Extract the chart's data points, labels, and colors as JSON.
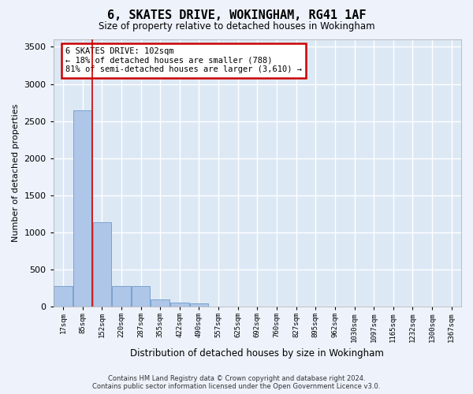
{
  "title": "6, SKATES DRIVE, WOKINGHAM, RG41 1AF",
  "subtitle": "Size of property relative to detached houses in Wokingham",
  "xlabel": "Distribution of detached houses by size in Wokingham",
  "ylabel": "Number of detached properties",
  "bar_color": "#aec6e8",
  "bar_edge_color": "#5a8fc2",
  "background_color": "#dde8f5",
  "grid_color": "#ffffff",
  "vline_color": "#cc0000",
  "vline_x": 1.5,
  "annotation_text": "6 SKATES DRIVE: 102sqm\n← 18% of detached houses are smaller (788)\n81% of semi-detached houses are larger (3,610) →",
  "annotation_box_color": "#ffffff",
  "annotation_box_edge": "#cc0000",
  "bin_labels": [
    "17sqm",
    "85sqm",
    "152sqm",
    "220sqm",
    "287sqm",
    "355sqm",
    "422sqm",
    "490sqm",
    "557sqm",
    "625sqm",
    "692sqm",
    "760sqm",
    "827sqm",
    "895sqm",
    "962sqm",
    "1030sqm",
    "1097sqm",
    "1165sqm",
    "1232sqm",
    "1300sqm",
    "1367sqm"
  ],
  "bar_heights": [
    275,
    2640,
    1140,
    280,
    280,
    95,
    55,
    40,
    0,
    0,
    0,
    0,
    0,
    0,
    0,
    0,
    0,
    0,
    0,
    0,
    0
  ],
  "ylim": [
    0,
    3600
  ],
  "yticks": [
    0,
    500,
    1000,
    1500,
    2000,
    2500,
    3000,
    3500
  ],
  "footnote": "Contains HM Land Registry data © Crown copyright and database right 2024.\nContains public sector information licensed under the Open Government Licence v3.0."
}
